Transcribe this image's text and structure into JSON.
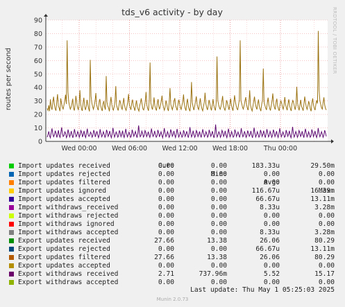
{
  "chart_data": {
    "type": "line",
    "title": "tds_v6 activity - by day",
    "ylabel": "routes per second",
    "xlabel": "",
    "ylim": [
      0,
      90
    ],
    "yticks": [
      "0",
      "10",
      "20",
      "30",
      "40",
      "50",
      "60",
      "70",
      "80",
      "90"
    ],
    "xtick_labels": [
      "Wed 00:00",
      "Wed 06:00",
      "Wed 12:00",
      "Wed 18:00",
      "Thu 00:00"
    ],
    "grid": true,
    "series": [
      {
        "name": "Export updates filtered",
        "color": "#9c7312",
        "values": [
          24.5,
          23.0,
          26.8,
          22.5,
          31.2,
          25.6,
          23.4,
          28.7,
          33.1,
          27.5,
          24.2,
          22.8,
          29.6,
          35.0,
          26.3,
          24.8,
          22.4,
          31.9,
          28.1,
          25.3,
          24.0,
          26.9,
          30.2,
          34.6,
          27.7,
          75.0,
          36.8,
          29.5,
          26.1,
          23.9,
          25.4,
          28.0,
          31.7,
          24.6,
          22.9,
          27.3,
          33.8,
          29.0,
          25.2,
          23.6,
          26.5,
          38.0,
          27.9,
          24.1,
          22.7,
          28.6,
          32.4,
          26.0,
          23.3,
          25.9,
          30.8,
          27.1,
          24.4,
          22.2,
          60.5,
          33.5,
          28.4,
          25.7,
          23.8,
          26.6,
          29.9,
          35.9,
          27.2,
          24.7,
          23.1,
          28.9,
          31.5,
          26.4,
          24.3,
          22.6,
          27.8,
          30.0,
          25.5,
          23.5,
          48.5,
          29.2,
          26.2,
          24.9,
          22.3,
          28.2,
          33.0,
          27.4,
          24.5,
          23.2,
          25.8,
          29.4,
          41.0,
          27.0,
          24.6,
          22.9,
          26.7,
          30.6,
          28.5,
          25.1,
          23.7,
          27.6,
          32.2,
          26.8,
          24.2,
          23.0,
          26.1,
          29.1,
          35.2,
          27.3,
          25.0,
          23.4,
          28.3,
          31.0,
          26.6,
          24.8,
          22.8,
          27.2,
          30.4,
          25.6,
          23.9,
          22.5,
          26.4,
          28.8,
          31.9,
          27.5,
          24.1,
          23.3,
          25.5,
          29.7,
          36.6,
          26.9,
          24.5,
          22.7,
          30.8,
          58.5,
          28.6,
          25.4,
          23.6,
          27.0,
          32.6,
          26.3,
          24.4,
          22.9,
          28.1,
          31.3,
          25.9,
          23.8,
          26.5,
          29.5,
          33.9,
          27.7,
          24.9,
          23.1,
          25.7,
          30.3,
          27.9,
          24.3,
          22.6,
          28.7,
          39.5,
          27.4,
          25.3,
          23.5,
          26.2,
          29.8,
          32.1,
          26.7,
          24.7,
          23.0,
          27.5,
          30.9,
          28.0,
          25.2,
          23.7,
          26.8,
          29.3,
          34.8,
          27.1,
          24.6,
          22.8,
          28.4,
          31.6,
          26.0,
          24.0,
          22.4,
          27.3,
          44.0,
          28.9,
          25.5,
          23.2,
          26.3,
          29.6,
          33.4,
          27.6,
          24.8,
          23.6,
          28.2,
          32.0,
          26.9,
          24.2,
          22.7,
          25.8,
          29.0,
          36.1,
          27.8,
          25.1,
          23.3,
          26.6,
          30.7,
          28.3,
          24.9,
          23.0,
          27.1,
          31.4,
          26.4,
          24.5,
          22.9,
          28.8,
          63.0,
          30.1,
          27.3,
          25.0,
          23.8,
          26.1,
          29.2,
          33.7,
          27.0,
          24.4,
          23.1,
          25.6,
          30.5,
          28.5,
          25.7,
          23.4,
          26.9,
          31.8,
          27.2,
          24.6,
          22.8,
          28.0,
          34.2,
          29.4,
          26.5,
          24.1,
          23.5,
          27.4,
          30.6,
          75.0,
          30.0,
          27.9,
          25.3,
          23.9,
          26.7,
          29.7,
          32.8,
          27.5,
          24.7,
          23.2,
          28.6,
          37.9,
          27.0,
          24.3,
          22.6,
          26.0,
          29.9,
          33.2,
          28.1,
          25.4,
          23.7,
          27.7,
          31.1,
          26.2,
          24.0,
          22.5,
          27.6,
          30.2,
          54.0,
          29.1,
          26.8,
          24.8,
          23.3,
          28.3,
          32.5,
          27.1,
          24.5,
          22.9,
          26.6,
          30.1,
          35.6,
          27.8,
          25.2,
          23.6,
          28.9,
          31.7,
          26.3,
          24.2,
          22.7,
          27.2,
          30.0,
          28.4,
          25.6,
          23.8,
          26.9,
          32.9,
          27.4,
          24.9,
          23.1,
          28.0,
          31.2,
          26.5,
          24.4,
          22.6,
          27.8,
          30.4,
          29.0,
          25.8,
          23.4,
          26.7,
          40.5,
          28.2,
          25.1,
          23.0,
          27.0,
          30.8,
          26.1,
          24.6,
          22.8,
          27.5,
          33.3,
          28.7,
          25.5,
          23.7,
          26.4,
          29.8,
          27.3,
          24.1,
          22.4,
          28.5,
          31.9,
          26.9,
          24.7,
          23.2,
          27.6,
          30.5,
          28.1,
          82.0,
          38.0,
          30.2,
          27.4,
          25.0,
          23.9,
          28.6,
          32.7,
          27.1,
          24.5,
          23.3
        ]
      },
      {
        "name": "Export withdraws received",
        "color": "#5d0b72",
        "values": [
          3.1,
          5.2,
          7.4,
          4.0,
          2.6,
          6.8,
          9.6,
          5.5,
          3.4,
          4.8,
          7.9,
          6.0,
          2.9,
          5.1,
          8.3,
          4.4,
          3.0,
          6.5,
          10.4,
          5.7,
          3.6,
          4.6,
          7.1,
          5.9,
          2.8,
          4.2,
          8.8,
          6.2,
          3.3,
          5.0,
          7.6,
          4.7,
          2.7,
          5.4,
          9.1,
          6.3,
          3.5,
          4.5,
          7.3,
          5.6,
          3.0,
          4.9,
          8.1,
          6.6,
          3.2,
          5.3,
          7.8,
          4.3,
          2.9,
          6.1,
          9.4,
          5.2,
          3.7,
          4.6,
          6.9,
          5.8,
          3.1,
          4.4,
          8.4,
          6.4,
          3.3,
          5.5,
          7.5,
          4.8,
          2.8,
          5.0,
          9.0,
          6.0,
          3.4,
          4.7,
          7.2,
          5.4,
          3.0,
          4.3,
          8.6,
          6.7,
          3.6,
          5.1,
          7.7,
          4.5,
          2.7,
          5.6,
          10.1,
          6.2,
          3.2,
          4.9,
          7.0,
          5.5,
          3.1,
          4.2,
          8.2,
          6.5,
          3.5,
          5.2,
          7.9,
          4.6,
          2.9,
          5.9,
          9.3,
          5.7,
          3.3,
          4.8,
          6.8,
          5.3,
          3.0,
          4.1,
          8.7,
          6.3,
          3.7,
          5.4,
          7.4,
          4.9,
          2.8,
          5.7,
          11.8,
          6.1,
          3.4,
          4.5,
          7.6,
          5.8,
          3.2,
          4.4,
          8.0,
          6.6,
          3.5,
          5.0,
          7.2,
          4.7,
          3.0,
          5.5,
          9.5,
          6.0,
          3.6,
          4.9,
          7.8,
          5.1,
          3.1,
          4.3,
          8.5,
          6.4,
          3.3,
          5.3,
          7.1,
          4.4,
          2.7,
          5.8,
          9.8,
          6.2,
          3.4,
          4.6,
          7.3,
          5.6,
          3.0,
          4.2,
          8.9,
          6.8,
          3.7,
          5.1,
          7.7,
          4.8,
          2.9,
          5.6,
          9.2,
          6.1,
          3.2,
          4.7,
          7.0,
          5.4,
          3.1,
          4.0,
          8.3,
          6.5,
          3.6,
          5.2,
          7.5,
          4.6,
          2.8,
          5.9,
          10.6,
          6.3,
          3.3,
          4.8,
          7.9,
          5.2,
          3.0,
          4.5,
          8.1,
          6.7,
          3.5,
          5.0,
          7.4,
          4.9,
          2.9,
          5.7,
          9.0,
          6.0,
          3.4,
          4.6,
          7.2,
          5.5,
          3.1,
          4.3,
          8.6,
          6.4,
          3.7,
          5.3,
          7.6,
          4.7,
          2.7,
          5.4,
          12.5,
          6.2,
          3.2,
          4.9,
          7.1,
          5.8,
          3.0,
          4.4,
          8.2,
          6.6,
          3.6,
          5.1,
          7.8,
          4.5,
          2.8,
          5.6,
          9.4,
          6.1,
          3.3,
          4.7,
          7.3,
          5.3,
          3.1,
          4.1,
          8.8,
          6.9,
          3.5,
          5.2,
          7.0,
          4.8,
          2.9,
          5.9,
          9.7,
          6.0,
          3.4,
          4.5,
          7.5,
          5.7,
          3.0,
          4.3,
          8.0,
          6.3,
          3.7,
          5.0,
          7.7,
          4.6,
          2.7,
          5.5,
          10.2,
          6.2,
          3.2,
          4.8,
          7.2,
          5.4,
          3.1,
          4.2,
          8.5,
          6.5,
          3.6,
          5.3,
          7.9,
          4.9,
          2.8,
          5.8,
          9.1,
          6.1,
          3.3,
          4.6,
          7.4,
          5.6,
          3.0,
          4.4,
          8.7,
          6.8,
          3.5,
          5.1,
          7.6,
          4.7,
          2.9,
          5.6,
          9.6,
          6.0,
          3.4,
          4.9,
          7.0,
          5.2,
          3.1,
          4.0,
          8.4,
          6.4,
          3.7,
          5.4,
          7.8,
          4.5,
          2.7,
          5.7,
          10.8,
          6.3,
          3.2,
          4.7,
          7.3,
          5.5,
          3.0,
          4.3,
          8.1,
          6.6,
          3.6,
          5.0,
          7.5,
          4.8,
          2.8,
          5.9,
          9.3,
          6.2,
          3.3,
          4.6,
          7.1,
          5.3,
          3.1,
          4.2,
          8.9,
          6.7,
          3.5,
          5.2,
          7.7,
          4.6,
          2.9,
          5.5,
          9.9,
          6.1,
          3.4,
          4.8,
          7.2,
          5.6,
          3.0,
          4.4,
          8.3,
          6.5,
          3.7
        ]
      }
    ]
  },
  "side_label": "RRDTOOL / TOBI OETIKER",
  "legend": {
    "headers": {
      "cur": "Cur:",
      "min": "Min:",
      "avg": "Avg:",
      "max": "Max:"
    },
    "rows": [
      {
        "name": "Import updates received",
        "color": "#00cc00",
        "cur": "0.00",
        "min": "0.00",
        "avg": "183.33u",
        "max": "29.50m"
      },
      {
        "name": "Import updates rejected",
        "color": "#0066b3",
        "cur": "0.00",
        "min": "0.00",
        "avg": "0.00",
        "max": "0.00"
      },
      {
        "name": "Import updates filtered",
        "color": "#ff8000",
        "cur": "0.00",
        "min": "0.00",
        "avg": "0.00",
        "max": "0.00"
      },
      {
        "name": "Import updates ignored",
        "color": "#ffcc00",
        "cur": "0.00",
        "min": "0.00",
        "avg": "116.67u",
        "max": "16.39m"
      },
      {
        "name": "Import updates accepted",
        "color": "#330099",
        "cur": "0.00",
        "min": "0.00",
        "avg": "66.67u",
        "max": "13.11m"
      },
      {
        "name": "Import withdraws_received",
        "color": "#990099",
        "cur": "0.00",
        "min": "0.00",
        "avg": "8.33u",
        "max": "3.28m"
      },
      {
        "name": "Import withdraws rejected",
        "color": "#ccff00",
        "cur": "0.00",
        "min": "0.00",
        "avg": "0.00",
        "max": "0.00"
      },
      {
        "name": "Import withdraws ignored",
        "color": "#ff0000",
        "cur": "0.00",
        "min": "0.00",
        "avg": "0.00",
        "max": "0.00"
      },
      {
        "name": "Import withdraws accepted",
        "color": "#808080",
        "cur": "0.00",
        "min": "0.00",
        "avg": "8.33u",
        "max": "3.28m"
      },
      {
        "name": "Export updates received",
        "color": "#008f00",
        "cur": "27.66",
        "min": "13.38",
        "avg": "26.06",
        "max": "80.29"
      },
      {
        "name": "Export updates rejected",
        "color": "#00487d",
        "cur": "0.00",
        "min": "0.00",
        "avg": "66.67u",
        "max": "13.11m"
      },
      {
        "name": "Export updates filtered",
        "color": "#b35a00",
        "cur": "27.66",
        "min": "13.38",
        "avg": "26.06",
        "max": "80.29"
      },
      {
        "name": "Export updates accepted",
        "color": "#b38f00",
        "cur": "0.00",
        "min": "0.00",
        "avg": "0.00",
        "max": "0.00"
      },
      {
        "name": "Export withdraws received",
        "color": "#6b006b",
        "cur": "2.71",
        "min": "737.96m",
        "avg": "5.52",
        "max": "15.17"
      },
      {
        "name": "Export withdraws accepted",
        "color": "#8fb300",
        "cur": "0.00",
        "min": "0.00",
        "avg": "0.00",
        "max": "0.00"
      }
    ]
  },
  "last_update": "Last update: Thu May  1 05:25:03 2025",
  "munin_version": "Munin 2.0.73"
}
